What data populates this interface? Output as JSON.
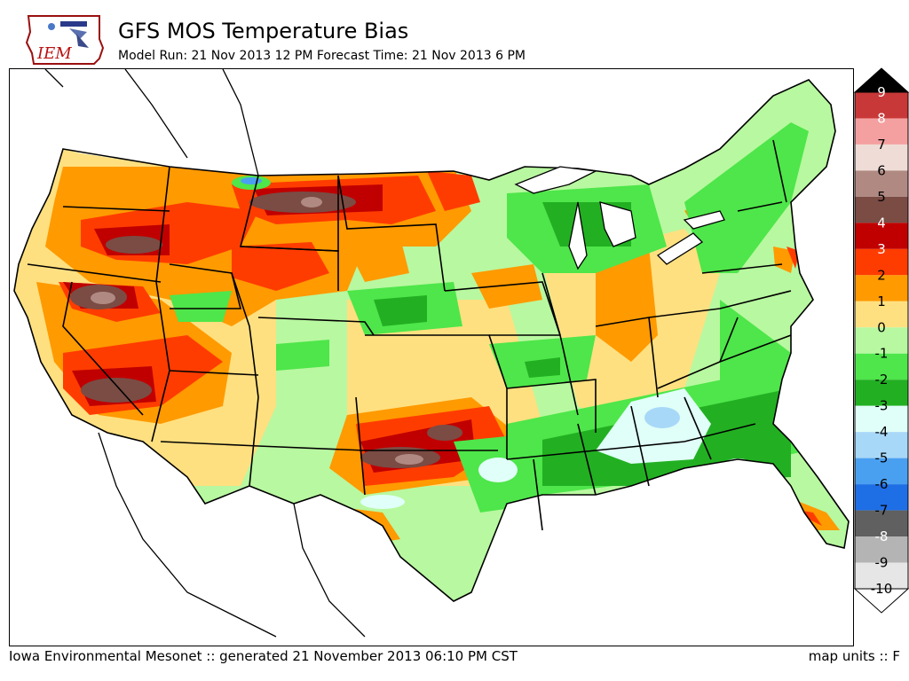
{
  "header": {
    "title": "GFS MOS Temperature Bias",
    "subtitle": "Model Run: 21 Nov 2013 12 PM Forecast Time: 21 Nov 2013 6 PM",
    "logo_text": "IEM"
  },
  "footer": {
    "left": "Iowa Environmental Mesonet :: generated 21 November 2013 06:10 PM CST",
    "right": "map units :: F"
  },
  "legend": {
    "levels": [
      {
        "label": "9",
        "color": "#000000"
      },
      {
        "label": "8",
        "color": "#c83838"
      },
      {
        "label": "7",
        "color": "#f4a0a0"
      },
      {
        "label": "6",
        "color": "#efdcd6"
      },
      {
        "label": "5",
        "color": "#b08a82"
      },
      {
        "label": "4",
        "color": "#7a4c44"
      },
      {
        "label": "3",
        "color": "#c00000"
      },
      {
        "label": "2",
        "color": "#ff3c00"
      },
      {
        "label": "1",
        "color": "#ff9a00"
      },
      {
        "label": "0",
        "color": "#ffe080"
      },
      {
        "label": "-1",
        "color": "#b8f8a0"
      },
      {
        "label": "-2",
        "color": "#4ee64a"
      },
      {
        "label": "-3",
        "color": "#22b022"
      },
      {
        "label": "-4",
        "color": "#e0fff8"
      },
      {
        "label": "-5",
        "color": "#a8d8f8"
      },
      {
        "label": "-6",
        "color": "#4aa0f0"
      },
      {
        "label": "-7",
        "color": "#1e6ee6"
      },
      {
        "label": "-8",
        "color": "#606060"
      },
      {
        "label": "-9",
        "color": "#b4b4b4"
      },
      {
        "label": "-10",
        "color": "#e6e6e6"
      }
    ]
  }
}
